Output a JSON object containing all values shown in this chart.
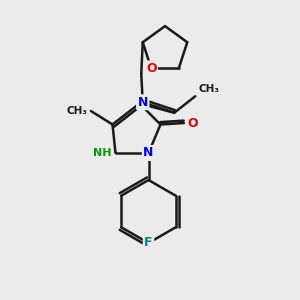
{
  "background_color": "#ebebeb",
  "bond_color": "#1a1a1a",
  "line_width": 1.8,
  "atom_colors": {
    "N": "#0000ee",
    "O": "#ee0000",
    "F": "#008888",
    "C": "#1a1a1a",
    "NH": "#009900"
  },
  "figsize": [
    3.0,
    3.0
  ],
  "dpi": 100
}
